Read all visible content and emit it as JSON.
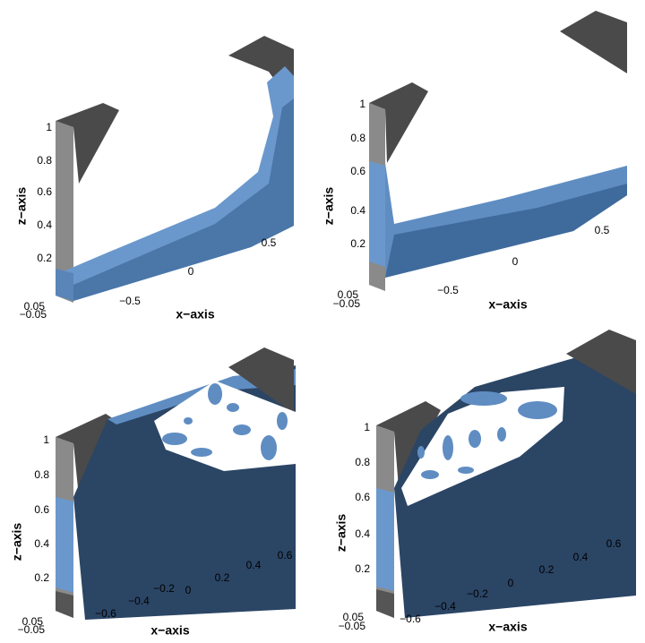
{
  "panels": [
    {
      "z_axis_label": "z−axis",
      "x_axis_label": "x−axis",
      "z_ticks": [
        "1",
        "0.8",
        "0.6",
        "0.4",
        "0.2",
        "0.05",
        "−0.05"
      ],
      "x_ticks": [
        "−0.5",
        "0",
        "0.5"
      ]
    },
    {
      "z_axis_label": "z−axis",
      "x_axis_label": "x−axis",
      "z_ticks": [
        "1",
        "0.8",
        "0.6",
        "0.4",
        "0.2",
        "0.05",
        "−0.05"
      ],
      "x_ticks": [
        "−0.5",
        "0",
        "0.5"
      ]
    },
    {
      "z_axis_label": "z−axis",
      "x_axis_label": "x−axis",
      "z_ticks": [
        "1",
        "0.8",
        "0.6",
        "0.4",
        "0.2",
        "0.05",
        "−0.05"
      ],
      "x_ticks": [
        "−0.6",
        "−0.4",
        "−0.2",
        "0",
        "0.2",
        "0.4",
        "0.6"
      ]
    },
    {
      "z_axis_label": "z−axis",
      "x_axis_label": "x−axis",
      "z_ticks": [
        "1",
        "0.8",
        "0.6",
        "0.4",
        "0.2",
        "0.05",
        "−0.05"
      ],
      "x_ticks": [
        "−0.6",
        "−0.4",
        "−0.2",
        "0",
        "0.2",
        "0.4",
        "0.6"
      ]
    }
  ]
}
